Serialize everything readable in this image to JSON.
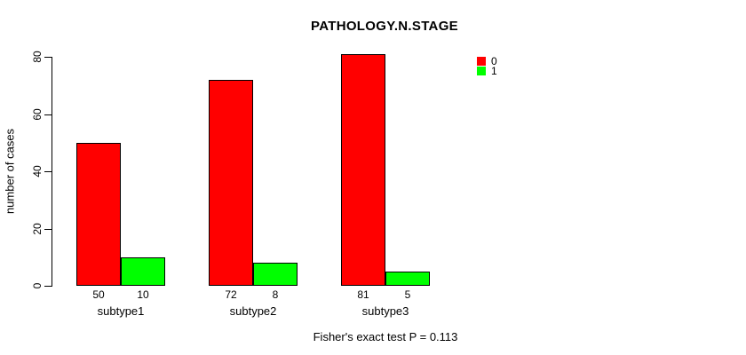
{
  "chart_data": {
    "type": "bar",
    "title": "PATHOLOGY.N.STAGE",
    "ylabel": "number of cases",
    "xlabel": "",
    "categories": [
      "subtype1",
      "subtype2",
      "subtype3"
    ],
    "series": [
      {
        "name": "0",
        "color": "#ff0000",
        "values": [
          50,
          72,
          81
        ]
      },
      {
        "name": "1",
        "color": "#00ff00",
        "values": [
          10,
          8,
          5
        ]
      }
    ],
    "bar_value_labels": [
      [
        50,
        10
      ],
      [
        72,
        8
      ],
      [
        81,
        5
      ]
    ],
    "yticks": [
      0,
      20,
      40,
      60,
      80
    ],
    "ylim": [
      0,
      80
    ],
    "grid": false,
    "legend_position": "top-right",
    "annotation": "Fisher's exact test P = 0.113",
    "bar_border_color": "#000000",
    "axis_color": "#000000",
    "text_color": "#000000",
    "background_color": "#ffffff"
  }
}
